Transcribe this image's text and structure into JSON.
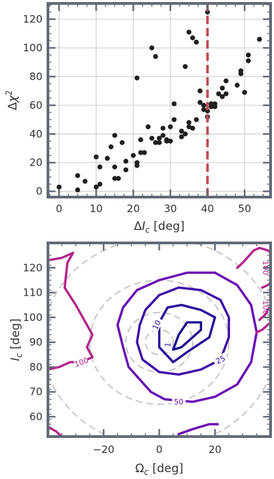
{
  "colors": {
    "frame": "#636b75",
    "grid": "#d3d3d3",
    "points": "#1f1f1f",
    "vline": "#c0474f",
    "circles": "#c8c8c8",
    "c1": "#1e0f8c",
    "c10": "#2a0f9a",
    "c25": "#3d0ea6",
    "c50": "#6a0bb3",
    "c100": "#b4268c"
  },
  "chart_data": [
    {
      "type": "scatter",
      "title": "",
      "xlabel_prefix": "Δ",
      "xlabel_var": "I",
      "xlabel_sub": "c",
      "xlabel_suffix": " [deg]",
      "ylabel_prefix": "Δ",
      "ylabel_var": "χ",
      "ylabel_sup": "2",
      "xlim": [
        -3,
        57
      ],
      "ylim": [
        -4,
        131
      ],
      "xticks": [
        0,
        10,
        20,
        30,
        40,
        50
      ],
      "yticks": [
        0,
        20,
        40,
        60,
        80,
        100,
        120
      ],
      "grid": true,
      "vline": 40,
      "points": [
        [
          0,
          3
        ],
        [
          5,
          11
        ],
        [
          5,
          1
        ],
        [
          7,
          7
        ],
        [
          10,
          24
        ],
        [
          10,
          3
        ],
        [
          11,
          17
        ],
        [
          11,
          5
        ],
        [
          13,
          23
        ],
        [
          14,
          31
        ],
        [
          15,
          39
        ],
        [
          15,
          17
        ],
        [
          15,
          9
        ],
        [
          16,
          9
        ],
        [
          17,
          34
        ],
        [
          18,
          21
        ],
        [
          18,
          15
        ],
        [
          20,
          25
        ],
        [
          21,
          79
        ],
        [
          21,
          20
        ],
        [
          21,
          18
        ],
        [
          22,
          27
        ],
        [
          22,
          36
        ],
        [
          23,
          27
        ],
        [
          24,
          45
        ],
        [
          25,
          100
        ],
        [
          25,
          37
        ],
        [
          26,
          34
        ],
        [
          26,
          94
        ],
        [
          27,
          37
        ],
        [
          27,
          34
        ],
        [
          28,
          44
        ],
        [
          28,
          39
        ],
        [
          29,
          36
        ],
        [
          29,
          35
        ],
        [
          30,
          35
        ],
        [
          30,
          45
        ],
        [
          31,
          50
        ],
        [
          31,
          61
        ],
        [
          33,
          38
        ],
        [
          33,
          42
        ],
        [
          34,
          40
        ],
        [
          34,
          87
        ],
        [
          35,
          48
        ],
        [
          35,
          45
        ],
        [
          35,
          111
        ],
        [
          36,
          107
        ],
        [
          36,
          44
        ],
        [
          37,
          104
        ],
        [
          37,
          50
        ],
        [
          38,
          70
        ],
        [
          38,
          62
        ],
        [
          39,
          57
        ],
        [
          39,
          60
        ],
        [
          40,
          125
        ],
        [
          40,
          52
        ],
        [
          40,
          56
        ],
        [
          41,
          61
        ],
        [
          41,
          59
        ],
        [
          42,
          59
        ],
        [
          42,
          61
        ],
        [
          43,
          68
        ],
        [
          44,
          66
        ],
        [
          44,
          72
        ],
        [
          45,
          68
        ],
        [
          45,
          77
        ],
        [
          48,
          74
        ],
        [
          49,
          84
        ],
        [
          49,
          82
        ],
        [
          50,
          69
        ],
        [
          51,
          95
        ],
        [
          51,
          91
        ],
        [
          54,
          106
        ]
      ]
    },
    {
      "type": "contour",
      "title": "",
      "xlabel_var": "Ω",
      "xlabel_sub": "c",
      "xlabel_suffix": " [deg]",
      "ylabel_var": "I",
      "ylabel_sub": "c",
      "ylabel_suffix": " [deg]",
      "xlim": [
        -40,
        40
      ],
      "ylim": [
        52,
        130
      ],
      "xticks": [
        -20,
        0,
        20
      ],
      "yticks": [
        60,
        70,
        80,
        90,
        100,
        110,
        120
      ],
      "guide_circles": {
        "center": [
          0,
          90
        ],
        "radii": [
          5,
          12,
          25,
          42
        ]
      },
      "levels": [
        {
          "label": "1",
          "label_pos": [
            3,
            89
          ],
          "label_rot": -80,
          "paths": [
            [
              [
                5,
                87
              ],
              [
                7,
                93
              ],
              [
                10,
                98
              ],
              [
                15,
                98
              ],
              [
                15,
                95
              ],
              [
                12,
                92
              ],
              [
                10,
                90
              ],
              [
                8,
                88
              ],
              [
                5,
                87
              ]
            ]
          ]
        },
        {
          "label": "10",
          "label_pos": [
            -1,
            97
          ],
          "label_rot": -65,
          "paths": [
            [
              [
                0,
                98
              ],
              [
                0,
                88
              ],
              [
                5,
                82
              ],
              [
                10,
                86
              ],
              [
                18,
                92
              ],
              [
                20,
                100
              ],
              [
                15,
                103
              ],
              [
                8,
                105
              ],
              [
                3,
                104
              ],
              [
                0,
                98
              ]
            ]
          ]
        },
        {
          "label": "25",
          "label_pos": [
            22,
            83
          ],
          "label_rot": -25,
          "paths": [
            [
              [
                -7,
                97
              ],
              [
                -8,
                90
              ],
              [
                -6,
                83
              ],
              [
                0,
                78
              ],
              [
                7,
                77
              ],
              [
                15,
                79
              ],
              [
                22,
                83
              ],
              [
                25,
                92
              ],
              [
                25,
                100
              ],
              [
                22,
                107
              ],
              [
                15,
                111
              ],
              [
                7,
                112
              ],
              [
                0,
                109
              ],
              [
                -5,
                103
              ],
              [
                -7,
                97
              ]
            ]
          ]
        },
        {
          "label": "50",
          "label_pos": [
            7,
            66
          ],
          "label_rot": 0,
          "paths": [
            [
              [
                -15,
                97
              ],
              [
                -13,
                88
              ],
              [
                -11,
                80
              ],
              [
                -7,
                75
              ],
              [
                -3,
                70
              ],
              [
                2,
                67
              ],
              [
                12,
                66
              ],
              [
                20,
                68
              ],
              [
                28,
                73
              ],
              [
                33,
                82
              ],
              [
                35,
                94
              ],
              [
                33,
                105
              ],
              [
                28,
                113
              ],
              [
                20,
                118
              ],
              [
                10,
                118
              ],
              [
                0,
                115
              ],
              [
                -8,
                111
              ],
              [
                -13,
                104
              ],
              [
                -15,
                97
              ]
            ],
            [
              [
                7,
                53
              ],
              [
                12,
                55
              ],
              [
                18,
                57
              ],
              [
                21,
                57
              ]
            ]
          ]
        },
        {
          "label": "100",
          "label_pos": [
            -28,
            82
          ],
          "label_rot": -20,
          "paths": [
            [
              [
                -40,
                123
              ],
              [
                -35,
                124
              ],
              [
                -31,
                126
              ],
              [
                -33,
                122
              ],
              [
                -34,
                112
              ],
              [
                -30,
                105
              ],
              [
                -27,
                99
              ],
              [
                -24,
                93
              ],
              [
                -26,
                88
              ],
              [
                -24,
                84
              ],
              [
                -28,
                82
              ],
              [
                -32,
                82
              ],
              [
                -36,
                80
              ],
              [
                -40,
                79
              ]
            ],
            [
              [
                -40,
                56
              ],
              [
                -37,
                54
              ],
              [
                -35,
                52
              ]
            ],
            [
              [
                28,
                120
              ],
              [
                30,
                122
              ],
              [
                34,
                127
              ],
              [
                36,
                128
              ],
              [
                39,
                127
              ],
              [
                40,
                126
              ]
            ],
            [
              [
                37,
                112
              ],
              [
                39,
                113
              ],
              [
                40,
                114
              ]
            ],
            [
              [
                36,
                99
              ],
              [
                37,
                100
              ],
              [
                38,
                101
              ],
              [
                39,
                103
              ],
              [
                40,
                104
              ]
            ],
            [
              [
                35,
                94
              ],
              [
                37,
                95
              ],
              [
                39,
                97
              ],
              [
                40,
                98
              ]
            ]
          ]
        }
      ],
      "side_label": {
        "text": "100",
        "pos": [
          38.3,
          120
        ],
        "rot": 90
      },
      "side_label2": {
        "text": "100",
        "pos": [
          38.3,
          104
        ],
        "rot": 90
      }
    }
  ]
}
